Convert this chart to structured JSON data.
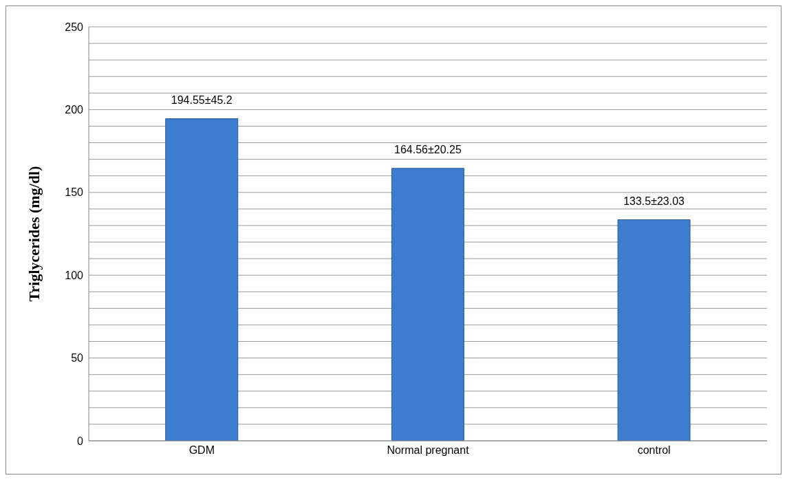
{
  "chart_data": {
    "type": "bar",
    "ylabel": "Triglycerides (mg/dl)",
    "categories": [
      "GDM",
      "Normal pregnant",
      "control"
    ],
    "values": [
      194.55,
      164.56,
      133.5
    ],
    "value_labels": [
      "194.55±45.2",
      "164.56±20.25",
      "133.5±23.03"
    ],
    "color": "#3c7dd0",
    "ylim": [
      0,
      250
    ],
    "yticks": [
      0,
      {
        "value": 10,
        "label": null
      },
      {
        "value": 20,
        "label": null
      },
      {
        "value": 30,
        "label": null
      },
      {
        "value": 40,
        "label": null
      },
      50,
      {
        "value": 60,
        "label": null
      },
      {
        "value": 70,
        "label": null
      },
      {
        "value": 80,
        "label": null
      },
      {
        "value": 90,
        "label": null
      },
      100,
      {
        "value": 110,
        "label": null
      },
      {
        "value": 120,
        "label": null
      },
      {
        "value": 130,
        "label": null
      },
      {
        "value": 140,
        "label": null
      },
      150,
      {
        "value": 160,
        "label": null
      },
      {
        "value": 170,
        "label": null
      },
      {
        "value": 180,
        "label": null
      },
      {
        "value": 190,
        "label": null
      },
      200,
      {
        "value": 210,
        "label": null
      },
      {
        "value": 220,
        "label": null
      },
      {
        "value": 230,
        "label": null
      },
      {
        "value": 240,
        "label": null
      },
      250
    ],
    "grid": "y",
    "legend": false
  }
}
